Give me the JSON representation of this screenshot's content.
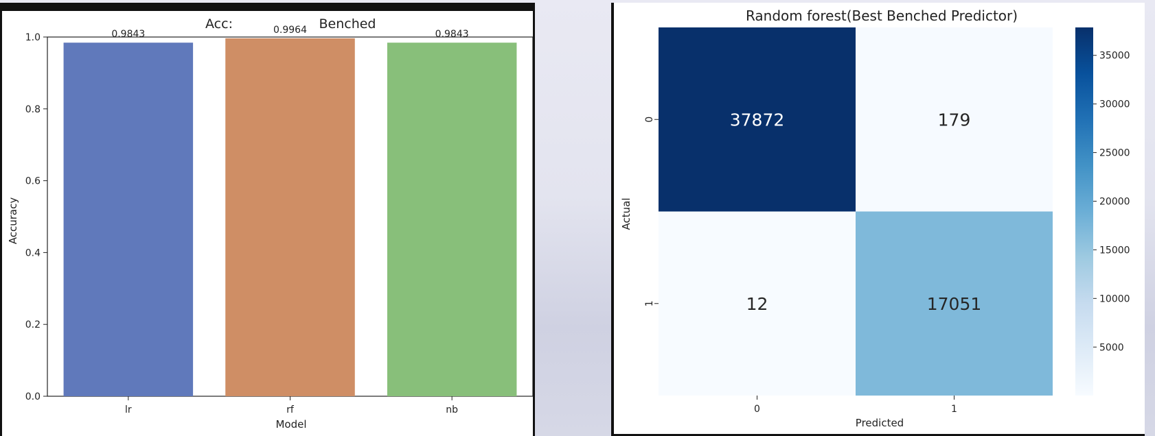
{
  "chart_data": [
    {
      "type": "bar",
      "title": "Acc:",
      "title_right": "Benched",
      "categories": [
        "lr",
        "rf",
        "nb"
      ],
      "values": [
        0.9843,
        0.9964,
        0.9843
      ],
      "data_labels": [
        "0.9843",
        "0.9964",
        "0.9843"
      ],
      "colors": [
        "#6079bb",
        "#cf8e65",
        "#88bf7a"
      ],
      "xlabel": "Model",
      "ylabel": "Accuracy",
      "ylim": [
        0,
        1.0
      ],
      "yticks": [
        "0.0",
        "0.2",
        "0.4",
        "0.6",
        "0.8",
        "1.0"
      ],
      "grid": false,
      "legend": "none"
    },
    {
      "type": "heatmap",
      "title": "Random forest(Best Benched Predictor)",
      "xlabel": "Predicted",
      "ylabel": "Actual",
      "x_categories": [
        "0",
        "1"
      ],
      "y_categories": [
        "0",
        "1"
      ],
      "values": [
        [
          37872,
          179
        ],
        [
          12,
          17051
        ]
      ],
      "cell_labels": [
        [
          "37872",
          "179"
        ],
        [
          "12",
          "17051"
        ]
      ],
      "colormap": "Blues",
      "colorbar": {
        "range": [
          12,
          37872
        ],
        "ticks": [
          5000,
          10000,
          15000,
          20000,
          25000,
          30000,
          35000
        ],
        "tick_labels": [
          "5000",
          "10000",
          "15000",
          "20000",
          "25000",
          "30000",
          "35000"
        ]
      },
      "grid": false
    }
  ]
}
